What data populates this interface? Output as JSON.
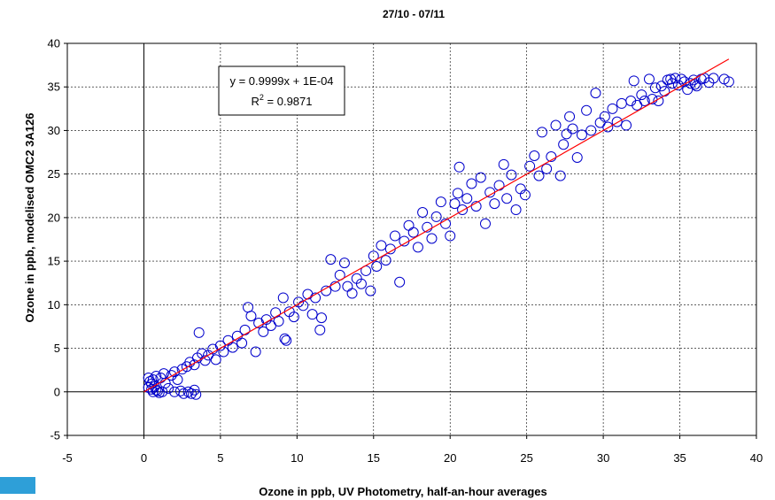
{
  "chart_data": {
    "type": "scatter",
    "title": "27/10 - 07/11",
    "xlabel": "Ozone in ppb, UV Photometry, half-an-hour averages",
    "ylabel": "Ozone in ppb, modelised OMC2 3A126",
    "xlim": [
      -5,
      40
    ],
    "ylim": [
      -5,
      40
    ],
    "x_ticks": [
      "-5",
      "0",
      "5",
      "10",
      "15",
      "20",
      "25",
      "30",
      "35",
      "40"
    ],
    "y_ticks": [
      "-5",
      "0",
      "5",
      "10",
      "15",
      "20",
      "25",
      "30",
      "35",
      "40"
    ],
    "grid": true,
    "grid_style": "dashed",
    "marker_color": "#0000cc",
    "trendline_color": "#ff0000",
    "trendline": {
      "slope": 0.9999,
      "intercept": 0.0001,
      "x_range": [
        0,
        38.2
      ],
      "equation": "y = 0.9999x + 1E-04",
      "r2_prefix": "R",
      "r2_sup": "2",
      "r2_value": " = 0.9871"
    },
    "series": [
      {
        "marker": "open-circle",
        "points": [
          [
            0.3,
            1.6
          ],
          [
            0.4,
            1.2
          ],
          [
            0.5,
            0.9
          ],
          [
            0.6,
            1.4
          ],
          [
            0.7,
            0.6
          ],
          [
            0.8,
            1.8
          ],
          [
            0.5,
            0.3
          ],
          [
            0.9,
            0.1
          ],
          [
            1.0,
            -0.1
          ],
          [
            1.2,
            0.0
          ],
          [
            0.3,
            0.5
          ],
          [
            0.6,
            0.0
          ],
          [
            0.8,
            0.2
          ],
          [
            1.1,
            1.6
          ],
          [
            1.3,
            2.1
          ],
          [
            1.4,
            1.0
          ],
          [
            1.6,
            0.4
          ],
          [
            1.8,
            1.9
          ],
          [
            2.0,
            2.3
          ],
          [
            2.2,
            1.4
          ],
          [
            2.0,
            0.0
          ],
          [
            2.4,
            0.1
          ],
          [
            2.6,
            -0.2
          ],
          [
            2.9,
            0.0
          ],
          [
            3.1,
            -0.2
          ],
          [
            3.3,
            0.2
          ],
          [
            3.4,
            -0.3
          ],
          [
            2.5,
            2.6
          ],
          [
            2.8,
            2.9
          ],
          [
            3.0,
            3.4
          ],
          [
            3.3,
            3.1
          ],
          [
            3.5,
            3.9
          ],
          [
            3.6,
            6.8
          ],
          [
            3.8,
            4.4
          ],
          [
            4.0,
            3.6
          ],
          [
            4.2,
            4.2
          ],
          [
            4.5,
            4.9
          ],
          [
            4.7,
            3.7
          ],
          [
            5.0,
            5.3
          ],
          [
            5.2,
            4.6
          ],
          [
            5.5,
            5.9
          ],
          [
            5.8,
            5.1
          ],
          [
            6.1,
            6.4
          ],
          [
            6.4,
            5.6
          ],
          [
            6.6,
            7.1
          ],
          [
            6.8,
            9.7
          ],
          [
            7.0,
            8.7
          ],
          [
            7.3,
            4.6
          ],
          [
            7.5,
            7.9
          ],
          [
            7.8,
            6.9
          ],
          [
            8.0,
            8.3
          ],
          [
            8.3,
            7.6
          ],
          [
            8.6,
            9.1
          ],
          [
            8.8,
            8.1
          ],
          [
            9.1,
            10.8
          ],
          [
            9.2,
            6.1
          ],
          [
            9.3,
            5.9
          ],
          [
            9.5,
            9.2
          ],
          [
            9.8,
            8.6
          ],
          [
            10.1,
            10.3
          ],
          [
            10.4,
            9.9
          ],
          [
            10.7,
            11.2
          ],
          [
            11.0,
            8.9
          ],
          [
            11.2,
            10.8
          ],
          [
            11.5,
            7.1
          ],
          [
            11.6,
            8.5
          ],
          [
            11.9,
            11.6
          ],
          [
            12.2,
            15.2
          ],
          [
            12.5,
            12.1
          ],
          [
            12.8,
            13.4
          ],
          [
            13.1,
            14.8
          ],
          [
            13.3,
            12.1
          ],
          [
            13.6,
            11.3
          ],
          [
            13.9,
            13.0
          ],
          [
            14.2,
            12.4
          ],
          [
            14.5,
            13.9
          ],
          [
            14.8,
            11.6
          ],
          [
            15.0,
            15.6
          ],
          [
            15.2,
            14.4
          ],
          [
            15.5,
            16.8
          ],
          [
            15.8,
            15.1
          ],
          [
            16.1,
            16.4
          ],
          [
            16.4,
            17.9
          ],
          [
            16.7,
            12.6
          ],
          [
            17.0,
            17.3
          ],
          [
            17.3,
            19.1
          ],
          [
            17.6,
            18.3
          ],
          [
            17.9,
            16.6
          ],
          [
            18.2,
            20.6
          ],
          [
            18.5,
            18.9
          ],
          [
            18.8,
            17.6
          ],
          [
            19.1,
            20.1
          ],
          [
            19.4,
            21.8
          ],
          [
            19.7,
            19.3
          ],
          [
            20.0,
            17.9
          ],
          [
            20.3,
            21.6
          ],
          [
            20.5,
            22.8
          ],
          [
            20.6,
            25.8
          ],
          [
            20.8,
            20.9
          ],
          [
            21.1,
            22.2
          ],
          [
            21.4,
            23.9
          ],
          [
            21.7,
            21.3
          ],
          [
            22.0,
            24.6
          ],
          [
            22.3,
            19.3
          ],
          [
            22.6,
            22.9
          ],
          [
            22.9,
            21.6
          ],
          [
            23.2,
            23.7
          ],
          [
            23.5,
            26.1
          ],
          [
            23.7,
            22.2
          ],
          [
            24.0,
            24.9
          ],
          [
            24.3,
            20.9
          ],
          [
            24.6,
            23.3
          ],
          [
            24.9,
            22.6
          ],
          [
            25.2,
            25.9
          ],
          [
            25.5,
            27.1
          ],
          [
            25.8,
            24.8
          ],
          [
            26.0,
            29.8
          ],
          [
            26.3,
            25.6
          ],
          [
            26.6,
            27.0
          ],
          [
            26.9,
            30.6
          ],
          [
            27.2,
            24.8
          ],
          [
            27.4,
            28.4
          ],
          [
            27.6,
            29.6
          ],
          [
            27.8,
            31.6
          ],
          [
            28.0,
            30.2
          ],
          [
            28.3,
            26.9
          ],
          [
            28.6,
            29.5
          ],
          [
            28.9,
            32.3
          ],
          [
            29.2,
            30.0
          ],
          [
            29.5,
            34.3
          ],
          [
            29.8,
            30.9
          ],
          [
            30.1,
            31.6
          ],
          [
            30.3,
            30.4
          ],
          [
            30.6,
            32.5
          ],
          [
            30.9,
            31.0
          ],
          [
            31.2,
            33.1
          ],
          [
            31.5,
            30.6
          ],
          [
            31.8,
            33.4
          ],
          [
            32.0,
            35.7
          ],
          [
            32.2,
            32.9
          ],
          [
            32.5,
            34.1
          ],
          [
            32.7,
            33.4
          ],
          [
            33.0,
            35.9
          ],
          [
            33.2,
            33.6
          ],
          [
            33.4,
            34.9
          ],
          [
            33.6,
            33.4
          ],
          [
            33.8,
            35.1
          ],
          [
            34.0,
            34.5
          ],
          [
            34.2,
            35.8
          ],
          [
            34.5,
            35.4
          ],
          [
            34.7,
            36.0
          ],
          [
            34.9,
            35.2
          ],
          [
            35.1,
            35.9
          ],
          [
            35.3,
            35.6
          ],
          [
            35.5,
            34.7
          ],
          [
            35.7,
            35.4
          ],
          [
            35.9,
            35.8
          ],
          [
            36.1,
            35.1
          ],
          [
            36.4,
            35.9
          ],
          [
            36.6,
            36.0
          ],
          [
            36.9,
            35.5
          ],
          [
            37.2,
            36.0
          ],
          [
            37.9,
            35.9
          ],
          [
            38.2,
            35.6
          ],
          [
            34.4,
            35.9
          ],
          [
            36.0,
            35.3
          ]
        ]
      }
    ]
  }
}
